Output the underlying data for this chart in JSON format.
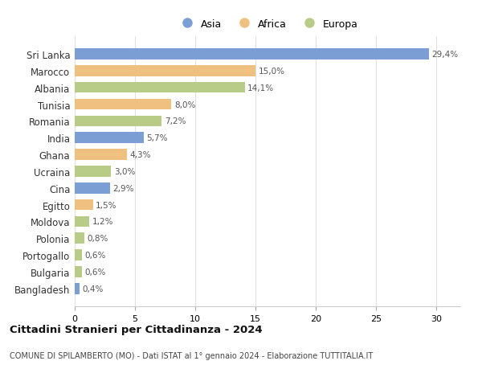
{
  "countries": [
    "Sri Lanka",
    "Marocco",
    "Albania",
    "Tunisia",
    "Romania",
    "India",
    "Ghana",
    "Ucraina",
    "Cina",
    "Egitto",
    "Moldova",
    "Polonia",
    "Portogallo",
    "Bulgaria",
    "Bangladesh"
  ],
  "values": [
    29.4,
    15.0,
    14.1,
    8.0,
    7.2,
    5.7,
    4.3,
    3.0,
    2.9,
    1.5,
    1.2,
    0.8,
    0.6,
    0.6,
    0.4
  ],
  "labels": [
    "29,4%",
    "15,0%",
    "14,1%",
    "8,0%",
    "7,2%",
    "5,7%",
    "4,3%",
    "3,0%",
    "2,9%",
    "1,5%",
    "1,2%",
    "0,8%",
    "0,6%",
    "0,6%",
    "0,4%"
  ],
  "colors": [
    "#7b9fd4",
    "#f0c080",
    "#b8cc88",
    "#f0c080",
    "#b8cc88",
    "#7b9fd4",
    "#f0c080",
    "#b8cc88",
    "#7b9fd4",
    "#f0c080",
    "#b8cc88",
    "#b8cc88",
    "#b8cc88",
    "#b8cc88",
    "#7b9fd4"
  ],
  "legend_labels": [
    "Asia",
    "Africa",
    "Europa"
  ],
  "legend_colors": [
    "#7b9fd4",
    "#f0c080",
    "#b8cc88"
  ],
  "title": "Cittadini Stranieri per Cittadinanza - 2024",
  "subtitle": "COMUNE DI SPILAMBERTO (MO) - Dati ISTAT al 1° gennaio 2024 - Elaborazione TUTTITALIA.IT",
  "xlim": [
    0,
    32
  ],
  "xticks": [
    0,
    5,
    10,
    15,
    20,
    25,
    30
  ],
  "background_color": "#ffffff",
  "bar_height": 0.65,
  "grid_color": "#e0e0e0"
}
